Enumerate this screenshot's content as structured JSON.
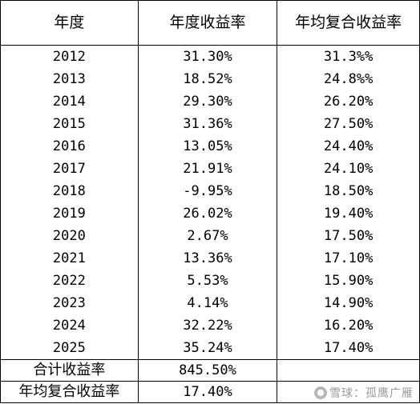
{
  "header": {
    "col1": "年度",
    "col2": "年度收益率",
    "col3": "年均复合收益率"
  },
  "rows": [
    {
      "year": "2012",
      "annual": "31.30%",
      "cagr": "31.3%%"
    },
    {
      "year": "2013",
      "annual": "18.52%",
      "cagr": "24.8%%"
    },
    {
      "year": "2014",
      "annual": "29.30%",
      "cagr": "26.20%"
    },
    {
      "year": "2015",
      "annual": "31.36%",
      "cagr": "27.50%"
    },
    {
      "year": "2016",
      "annual": "13.05%",
      "cagr": "24.40%"
    },
    {
      "year": "2017",
      "annual": "21.91%",
      "cagr": "24.10%"
    },
    {
      "year": "2018",
      "annual": "-9.95%",
      "cagr": "18.50%"
    },
    {
      "year": "2019",
      "annual": "26.02%",
      "cagr": "19.40%"
    },
    {
      "year": "2020",
      "annual": "2.67%",
      "cagr": "17.50%"
    },
    {
      "year": "2021",
      "annual": "13.36%",
      "cagr": "17.10%"
    },
    {
      "year": "2022",
      "annual": "5.53%",
      "cagr": "15.90%"
    },
    {
      "year": "2023",
      "annual": "4.14%",
      "cagr": "14.90%"
    },
    {
      "year": "2024",
      "annual": "32.22%",
      "cagr": "16.20%"
    },
    {
      "year": "2025",
      "annual": "35.24%",
      "cagr": "17.40%"
    }
  ],
  "summary": [
    {
      "label": "合计收益率",
      "value": "845.50%"
    },
    {
      "label": "年均复合收益率",
      "value": "17.40%"
    }
  ],
  "watermark": "雪球：孤鹰广雁"
}
